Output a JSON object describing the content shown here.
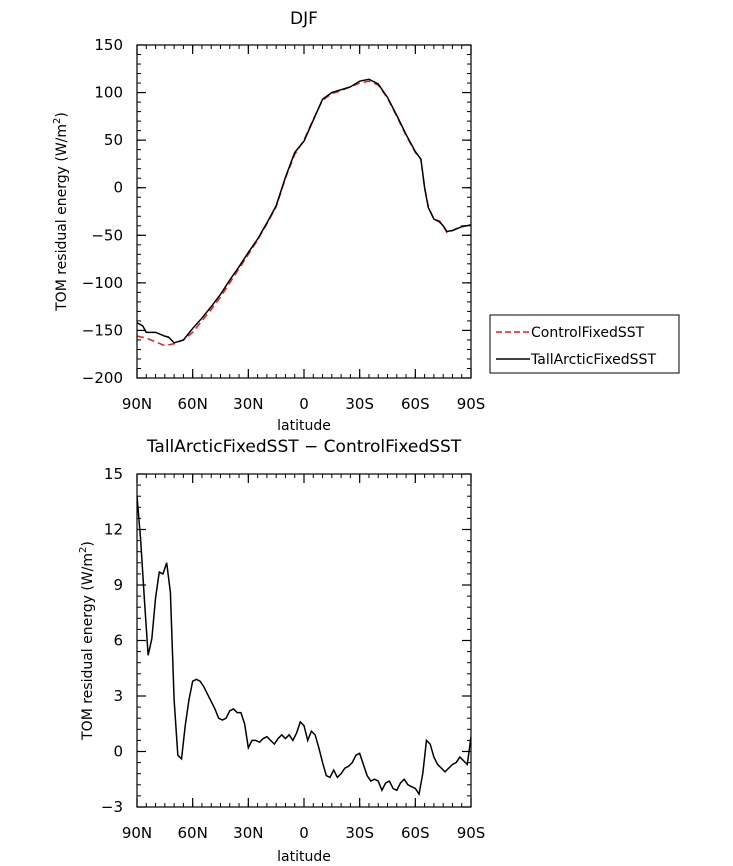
{
  "chart_data": [
    {
      "type": "line",
      "title": "DJF",
      "xlabel": "latitude",
      "ylabel": "TOM residual energy (W/m",
      "ylabel_sup": "2",
      "ylabel_end": ")",
      "xlim": [
        90,
        -90
      ],
      "ylim": [
        -200,
        150
      ],
      "yticks": [
        150,
        100,
        50,
        0,
        -50,
        -100,
        -150,
        -200
      ],
      "ytick_labels": [
        "150",
        "100",
        "50",
        "0",
        "−50",
        "−100",
        "−150",
        "−200"
      ],
      "xticks": [
        90,
        60,
        30,
        0,
        -30,
        -60,
        -90
      ],
      "xtick_labels": [
        "90N",
        "60N",
        "30N",
        "0",
        "30S",
        "60S",
        "90S"
      ],
      "legend": {
        "placement": "outside-right",
        "entries": [
          {
            "label": "ControlFixedSST",
            "color": "#e8201c",
            "dash": "dashed"
          },
          {
            "label": "TallArcticFixedSST",
            "color": "#000000",
            "dash": "solid"
          }
        ]
      },
      "series": [
        {
          "name": "ControlFixedSST",
          "color": "#e8201c",
          "dash": "dashed",
          "x": [
            90,
            85,
            80,
            75,
            70,
            65,
            60,
            55,
            50,
            45,
            40,
            35,
            30,
            25,
            20,
            15,
            10,
            5,
            0,
            -5,
            -10,
            -15,
            -20,
            -25,
            -30,
            -35,
            -40,
            -45,
            -50,
            -55,
            -60,
            -63,
            -65,
            -67,
            -70,
            -73,
            -75,
            -77,
            -80,
            -85,
            -90
          ],
          "y": [
            -156,
            -158,
            -162,
            -166,
            -164,
            -160,
            -152,
            -140,
            -128,
            -115,
            -100,
            -85,
            -70,
            -55,
            -38,
            -20,
            10,
            35,
            50,
            72,
            92,
            99,
            102,
            106,
            110,
            112,
            108,
            94,
            75,
            55,
            37,
            30,
            0,
            -20,
            -33,
            -35,
            -40,
            -47,
            -45,
            -40,
            -40
          ]
        },
        {
          "name": "TallArcticFixedSST",
          "color": "#000000",
          "dash": "solid",
          "x": [
            90,
            87,
            85,
            80,
            75,
            73,
            70,
            65,
            60,
            55,
            50,
            45,
            40,
            35,
            30,
            25,
            20,
            15,
            10,
            5,
            0,
            -5,
            -10,
            -15,
            -20,
            -25,
            -30,
            -35,
            -40,
            -45,
            -50,
            -55,
            -60,
            -63,
            -65,
            -67,
            -70,
            -73,
            -75,
            -77,
            -80,
            -85,
            -90
          ],
          "y": [
            -142,
            -145,
            -152,
            -152,
            -156,
            -157,
            -163,
            -160,
            -148,
            -137,
            -125,
            -112,
            -97,
            -83,
            -68,
            -54,
            -37,
            -19,
            11,
            37,
            49,
            71,
            93,
            100,
            103,
            106,
            112,
            114,
            109,
            95,
            76,
            56,
            38,
            30,
            0,
            -21,
            -33,
            -36,
            -40,
            -46,
            -45,
            -41,
            -39
          ]
        }
      ]
    },
    {
      "type": "line",
      "title": "TallArcticFixedSST − ControlFixedSST",
      "xlabel": "latitude",
      "ylabel": "TOM residual energy (W/m",
      "ylabel_sup": "2",
      "ylabel_end": ")",
      "xlim": [
        90,
        -90
      ],
      "ylim": [
        -3,
        15
      ],
      "yticks": [
        15,
        12,
        9,
        6,
        3,
        0,
        -3
      ],
      "ytick_labels": [
        "15",
        "12",
        "9",
        "6",
        "3",
        "0",
        "−3"
      ],
      "xticks": [
        90,
        60,
        30,
        0,
        -30,
        -60,
        -90
      ],
      "xtick_labels": [
        "90N",
        "60N",
        "30N",
        "0",
        "30S",
        "60S",
        "90S"
      ],
      "series": [
        {
          "name": "TallArcticFixedSST - ControlFixedSST",
          "color": "#000000",
          "dash": "solid",
          "x": [
            90,
            88,
            86,
            84,
            82,
            80,
            78,
            76,
            74,
            72,
            70,
            68,
            66,
            64,
            62,
            60,
            58,
            56,
            54,
            52,
            50,
            48,
            46,
            44,
            42,
            40,
            38,
            36,
            34,
            32,
            30,
            28,
            26,
            24,
            22,
            20,
            18,
            16,
            14,
            12,
            10,
            8,
            6,
            4,
            2,
            0,
            -2,
            -4,
            -6,
            -8,
            -10,
            -12,
            -14,
            -16,
            -18,
            -20,
            -22,
            -24,
            -26,
            -28,
            -30,
            -32,
            -34,
            -36,
            -38,
            -40,
            -42,
            -44,
            -46,
            -48,
            -50,
            -52,
            -54,
            -56,
            -58,
            -60,
            -62,
            -64,
            -66,
            -68,
            -70,
            -72,
            -74,
            -76,
            -78,
            -80,
            -82,
            -84,
            -86,
            -88,
            -90
          ],
          "y": [
            13.8,
            11.4,
            8.2,
            5.2,
            6.1,
            8.3,
            9.7,
            9.6,
            10.2,
            8.6,
            2.8,
            -0.2,
            -0.4,
            1.4,
            2.8,
            3.8,
            3.9,
            3.8,
            3.5,
            3.1,
            2.7,
            2.3,
            1.8,
            1.7,
            1.8,
            2.2,
            2.3,
            2.1,
            2.1,
            1.5,
            0.2,
            0.6,
            0.6,
            0.5,
            0.7,
            0.8,
            0.6,
            0.4,
            0.7,
            0.9,
            0.7,
            0.9,
            0.6,
            1.0,
            1.6,
            1.4,
            0.6,
            1.1,
            0.9,
            0.2,
            -0.6,
            -1.3,
            -1.4,
            -1.0,
            -1.4,
            -1.2,
            -0.9,
            -0.8,
            -0.6,
            -0.2,
            -0.1,
            -0.7,
            -1.3,
            -1.6,
            -1.5,
            -1.6,
            -2.1,
            -1.7,
            -1.6,
            -2.0,
            -2.1,
            -1.7,
            -1.5,
            -1.8,
            -1.9,
            -2.0,
            -2.3,
            -1.2,
            0.6,
            0.4,
            -0.3,
            -0.7,
            -0.9,
            -1.1,
            -0.9,
            -0.7,
            -0.6,
            -0.3,
            -0.5,
            -0.7,
            0.8
          ]
        }
      ]
    }
  ]
}
